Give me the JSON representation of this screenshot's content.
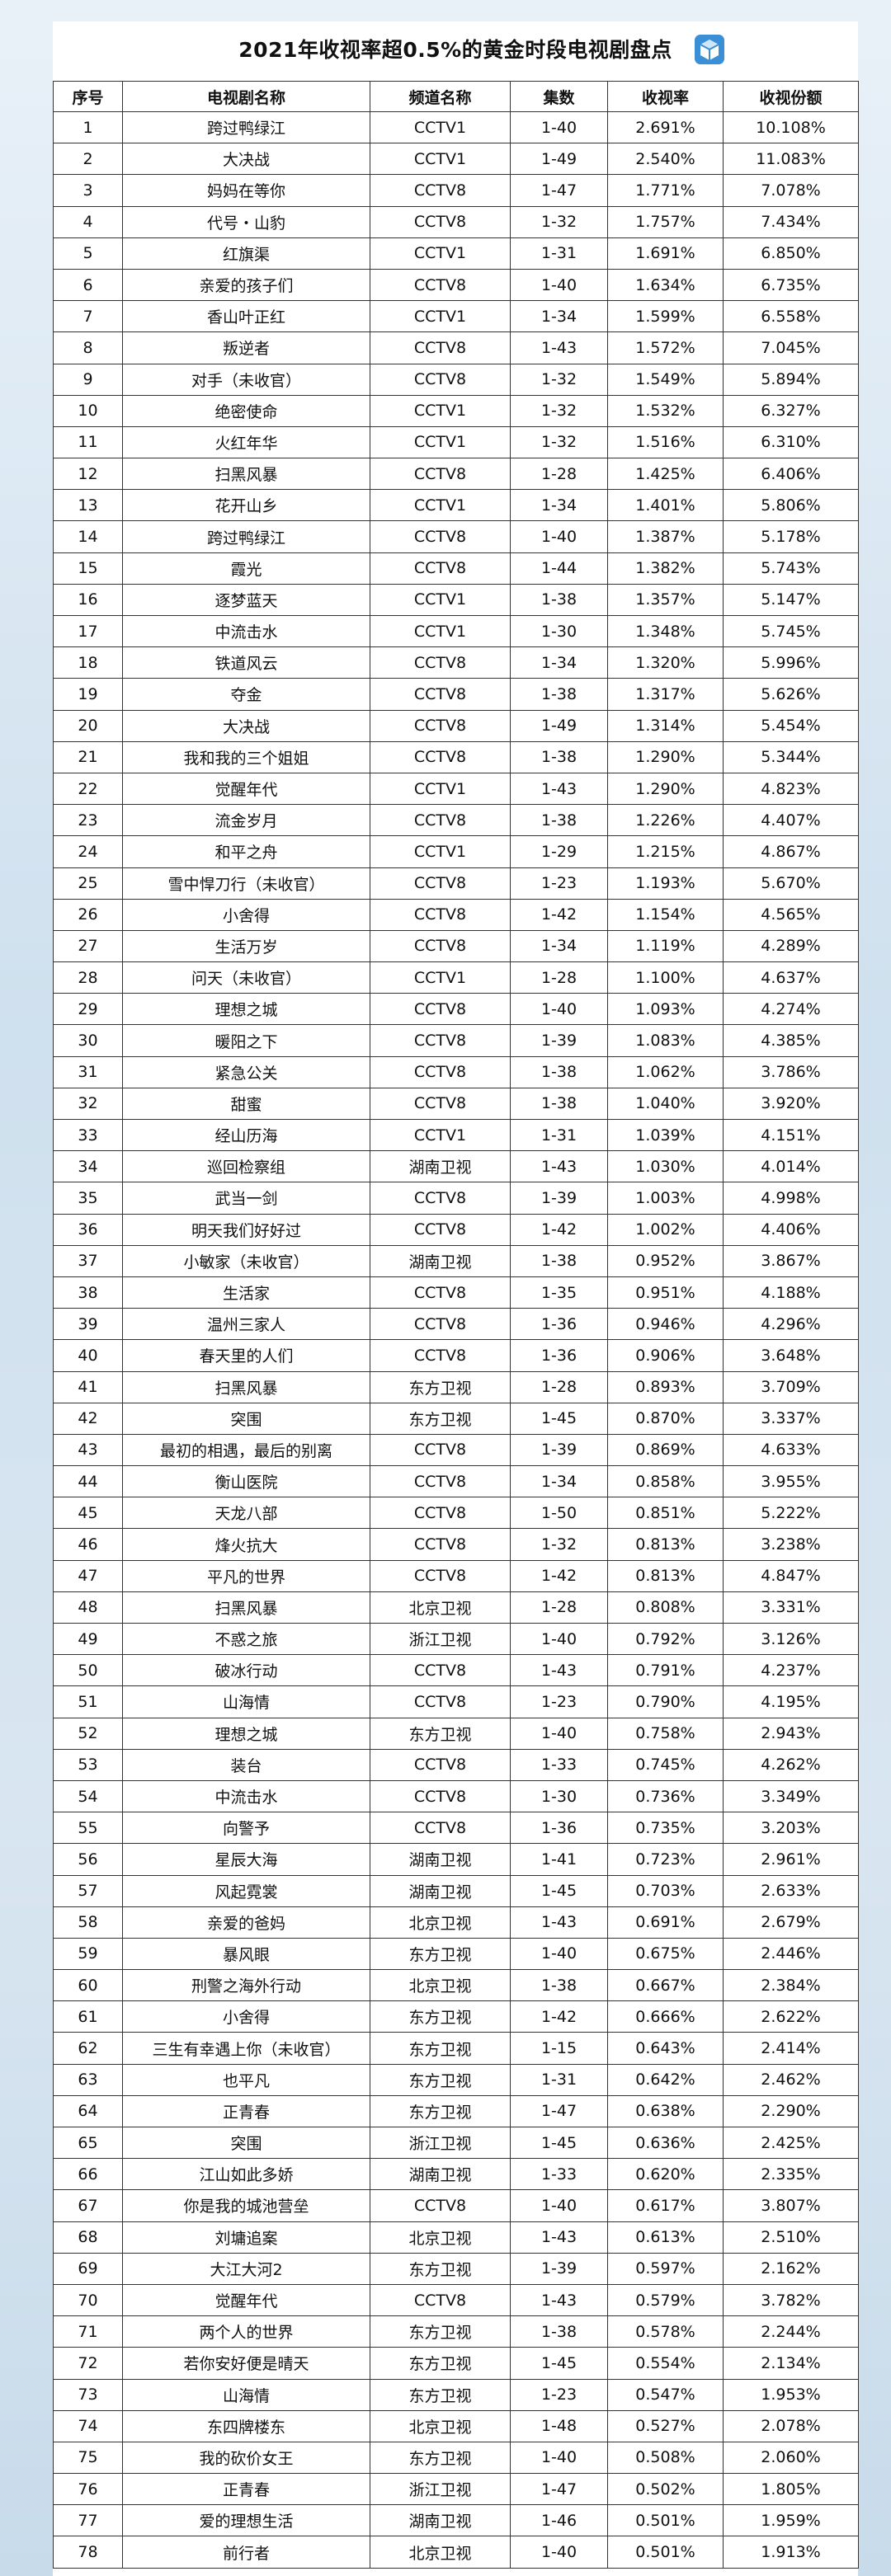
{
  "title": "2021年收视率超0.5%的黄金时段电视剧盘点",
  "logo_icon": "cube-logo-icon",
  "colors": {
    "logo": "#3a8fd6",
    "border": "#333333"
  },
  "headers": [
    "序号",
    "电视剧名称",
    "频道名称",
    "集数",
    "收视率",
    "收视份额"
  ],
  "rows": [
    [
      "1",
      "跨过鸭绿江",
      "CCTV1",
      "1-40",
      "2.691%",
      "10.108%"
    ],
    [
      "2",
      "大决战",
      "CCTV1",
      "1-49",
      "2.540%",
      "11.083%"
    ],
    [
      "3",
      "妈妈在等你",
      "CCTV8",
      "1-47",
      "1.771%",
      "7.078%"
    ],
    [
      "4",
      "代号・山豹",
      "CCTV8",
      "1-32",
      "1.757%",
      "7.434%"
    ],
    [
      "5",
      "红旗渠",
      "CCTV1",
      "1-31",
      "1.691%",
      "6.850%"
    ],
    [
      "6",
      "亲爱的孩子们",
      "CCTV8",
      "1-40",
      "1.634%",
      "6.735%"
    ],
    [
      "7",
      "香山叶正红",
      "CCTV1",
      "1-34",
      "1.599%",
      "6.558%"
    ],
    [
      "8",
      "叛逆者",
      "CCTV8",
      "1-43",
      "1.572%",
      "7.045%"
    ],
    [
      "9",
      "对手（未收官）",
      "CCTV8",
      "1-32",
      "1.549%",
      "5.894%"
    ],
    [
      "10",
      "绝密使命",
      "CCTV1",
      "1-32",
      "1.532%",
      "6.327%"
    ],
    [
      "11",
      "火红年华",
      "CCTV1",
      "1-32",
      "1.516%",
      "6.310%"
    ],
    [
      "12",
      "扫黑风暴",
      "CCTV8",
      "1-28",
      "1.425%",
      "6.406%"
    ],
    [
      "13",
      "花开山乡",
      "CCTV1",
      "1-34",
      "1.401%",
      "5.806%"
    ],
    [
      "14",
      "跨过鸭绿江",
      "CCTV8",
      "1-40",
      "1.387%",
      "5.178%"
    ],
    [
      "15",
      "霞光",
      "CCTV8",
      "1-44",
      "1.382%",
      "5.743%"
    ],
    [
      "16",
      "逐梦蓝天",
      "CCTV1",
      "1-38",
      "1.357%",
      "5.147%"
    ],
    [
      "17",
      "中流击水",
      "CCTV1",
      "1-30",
      "1.348%",
      "5.745%"
    ],
    [
      "18",
      "铁道风云",
      "CCTV8",
      "1-34",
      "1.320%",
      "5.996%"
    ],
    [
      "19",
      "夺金",
      "CCTV8",
      "1-38",
      "1.317%",
      "5.626%"
    ],
    [
      "20",
      "大决战",
      "CCTV8",
      "1-49",
      "1.314%",
      "5.454%"
    ],
    [
      "21",
      "我和我的三个姐姐",
      "CCTV8",
      "1-38",
      "1.290%",
      "5.344%"
    ],
    [
      "22",
      "觉醒年代",
      "CCTV1",
      "1-43",
      "1.290%",
      "4.823%"
    ],
    [
      "23",
      "流金岁月",
      "CCTV8",
      "1-38",
      "1.226%",
      "4.407%"
    ],
    [
      "24",
      "和平之舟",
      "CCTV1",
      "1-29",
      "1.215%",
      "4.867%"
    ],
    [
      "25",
      "雪中悍刀行（未收官）",
      "CCTV8",
      "1-23",
      "1.193%",
      "5.670%"
    ],
    [
      "26",
      "小舍得",
      "CCTV8",
      "1-42",
      "1.154%",
      "4.565%"
    ],
    [
      "27",
      "生活万岁",
      "CCTV8",
      "1-34",
      "1.119%",
      "4.289%"
    ],
    [
      "28",
      "问天（未收官）",
      "CCTV1",
      "1-28",
      "1.100%",
      "4.637%"
    ],
    [
      "29",
      "理想之城",
      "CCTV8",
      "1-40",
      "1.093%",
      "4.274%"
    ],
    [
      "30",
      "暖阳之下",
      "CCTV8",
      "1-39",
      "1.083%",
      "4.385%"
    ],
    [
      "31",
      "紧急公关",
      "CCTV8",
      "1-38",
      "1.062%",
      "3.786%"
    ],
    [
      "32",
      "甜蜜",
      "CCTV8",
      "1-38",
      "1.040%",
      "3.920%"
    ],
    [
      "33",
      "经山历海",
      "CCTV1",
      "1-31",
      "1.039%",
      "4.151%"
    ],
    [
      "34",
      "巡回检察组",
      "湖南卫视",
      "1-43",
      "1.030%",
      "4.014%"
    ],
    [
      "35",
      "武当一剑",
      "CCTV8",
      "1-39",
      "1.003%",
      "4.998%"
    ],
    [
      "36",
      "明天我们好好过",
      "CCTV8",
      "1-42",
      "1.002%",
      "4.406%"
    ],
    [
      "37",
      "小敏家（未收官）",
      "湖南卫视",
      "1-38",
      "0.952%",
      "3.867%"
    ],
    [
      "38",
      "生活家",
      "CCTV8",
      "1-35",
      "0.951%",
      "4.188%"
    ],
    [
      "39",
      "温州三家人",
      "CCTV8",
      "1-36",
      "0.946%",
      "4.296%"
    ],
    [
      "40",
      "春天里的人们",
      "CCTV8",
      "1-36",
      "0.906%",
      "3.648%"
    ],
    [
      "41",
      "扫黑风暴",
      "东方卫视",
      "1-28",
      "0.893%",
      "3.709%"
    ],
    [
      "42",
      "突围",
      "东方卫视",
      "1-45",
      "0.870%",
      "3.337%"
    ],
    [
      "43",
      "最初的相遇，最后的别离",
      "CCTV8",
      "1-39",
      "0.869%",
      "4.633%"
    ],
    [
      "44",
      "衡山医院",
      "CCTV8",
      "1-34",
      "0.858%",
      "3.955%"
    ],
    [
      "45",
      "天龙八部",
      "CCTV8",
      "1-50",
      "0.851%",
      "5.222%"
    ],
    [
      "46",
      "烽火抗大",
      "CCTV8",
      "1-32",
      "0.813%",
      "3.238%"
    ],
    [
      "47",
      "平凡的世界",
      "CCTV8",
      "1-42",
      "0.813%",
      "4.847%"
    ],
    [
      "48",
      "扫黑风暴",
      "北京卫视",
      "1-28",
      "0.808%",
      "3.331%"
    ],
    [
      "49",
      "不惑之旅",
      "浙江卫视",
      "1-40",
      "0.792%",
      "3.126%"
    ],
    [
      "50",
      "破冰行动",
      "CCTV8",
      "1-43",
      "0.791%",
      "4.237%"
    ],
    [
      "51",
      "山海情",
      "CCTV8",
      "1-23",
      "0.790%",
      "4.195%"
    ],
    [
      "52",
      "理想之城",
      "东方卫视",
      "1-40",
      "0.758%",
      "2.943%"
    ],
    [
      "53",
      "装台",
      "CCTV8",
      "1-33",
      "0.745%",
      "4.262%"
    ],
    [
      "54",
      "中流击水",
      "CCTV8",
      "1-30",
      "0.736%",
      "3.349%"
    ],
    [
      "55",
      "向警予",
      "CCTV8",
      "1-36",
      "0.735%",
      "3.203%"
    ],
    [
      "56",
      "星辰大海",
      "湖南卫视",
      "1-41",
      "0.723%",
      "2.961%"
    ],
    [
      "57",
      "风起霓裳",
      "湖南卫视",
      "1-45",
      "0.703%",
      "2.633%"
    ],
    [
      "58",
      "亲爱的爸妈",
      "北京卫视",
      "1-43",
      "0.691%",
      "2.679%"
    ],
    [
      "59",
      "暴风眼",
      "东方卫视",
      "1-40",
      "0.675%",
      "2.446%"
    ],
    [
      "60",
      "刑警之海外行动",
      "北京卫视",
      "1-38",
      "0.667%",
      "2.384%"
    ],
    [
      "61",
      "小舍得",
      "东方卫视",
      "1-42",
      "0.666%",
      "2.622%"
    ],
    [
      "62",
      "三生有幸遇上你（未收官）",
      "东方卫视",
      "1-15",
      "0.643%",
      "2.414%"
    ],
    [
      "63",
      "也平凡",
      "东方卫视",
      "1-31",
      "0.642%",
      "2.462%"
    ],
    [
      "64",
      "正青春",
      "东方卫视",
      "1-47",
      "0.638%",
      "2.290%"
    ],
    [
      "65",
      "突围",
      "浙江卫视",
      "1-45",
      "0.636%",
      "2.425%"
    ],
    [
      "66",
      "江山如此多娇",
      "湖南卫视",
      "1-33",
      "0.620%",
      "2.335%"
    ],
    [
      "67",
      "你是我的城池营垒",
      "CCTV8",
      "1-40",
      "0.617%",
      "3.807%"
    ],
    [
      "68",
      "刘墉追案",
      "北京卫视",
      "1-43",
      "0.613%",
      "2.510%"
    ],
    [
      "69",
      "大江大河2",
      "东方卫视",
      "1-39",
      "0.597%",
      "2.162%"
    ],
    [
      "70",
      "觉醒年代",
      "CCTV8",
      "1-43",
      "0.579%",
      "3.782%"
    ],
    [
      "71",
      "两个人的世界",
      "东方卫视",
      "1-38",
      "0.578%",
      "2.244%"
    ],
    [
      "72",
      "若你安好便是晴天",
      "东方卫视",
      "1-45",
      "0.554%",
      "2.134%"
    ],
    [
      "73",
      "山海情",
      "东方卫视",
      "1-23",
      "0.547%",
      "1.953%"
    ],
    [
      "74",
      "东四牌楼东",
      "北京卫视",
      "1-48",
      "0.527%",
      "2.078%"
    ],
    [
      "75",
      "我的砍价女王",
      "东方卫视",
      "1-40",
      "0.508%",
      "2.060%"
    ],
    [
      "76",
      "正青春",
      "浙江卫视",
      "1-47",
      "0.502%",
      "1.805%"
    ],
    [
      "77",
      "爱的理想生活",
      "湖南卫视",
      "1-46",
      "0.501%",
      "1.959%"
    ],
    [
      "78",
      "前行者",
      "北京卫视",
      "1-40",
      "0.501%",
      "1.913%"
    ]
  ]
}
